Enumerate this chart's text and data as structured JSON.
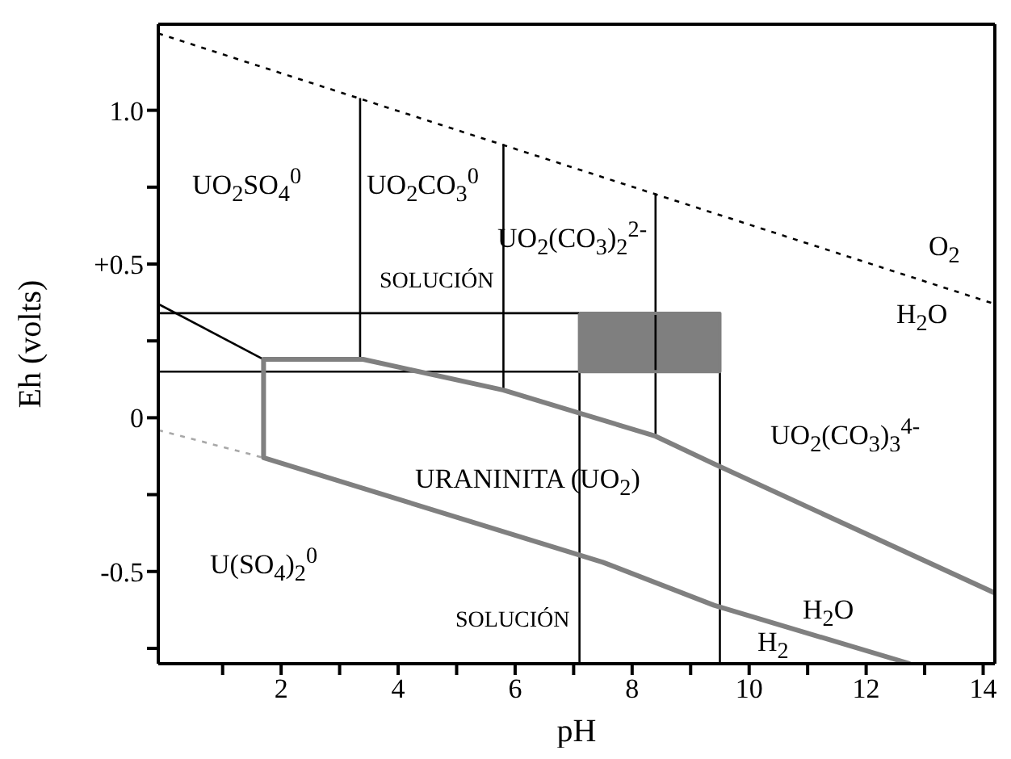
{
  "chart_data": {
    "type": "line",
    "xlabel": "pH",
    "ylabel": "Eh (volts)",
    "xlim": [
      -0.1,
      14.2
    ],
    "ylim": [
      -0.8,
      1.28
    ],
    "xticks": [
      {
        "value": 1,
        "label": null
      },
      2,
      {
        "value": 3,
        "label": null
      },
      4,
      {
        "value": 5,
        "label": null
      },
      6,
      {
        "value": 7,
        "label": null
      },
      8,
      {
        "value": 9,
        "label": null
      },
      10,
      {
        "value": 11,
        "label": null
      },
      12,
      {
        "value": 13,
        "label": null
      },
      14
    ],
    "yticks": [
      {
        "value": -0.75,
        "label": null
      },
      {
        "value": -0.5,
        "label": "-0.5"
      },
      {
        "value": -0.25,
        "label": null
      },
      0,
      {
        "value": 0.25,
        "label": null
      },
      {
        "value": 0.5,
        "label": "+0.5"
      },
      {
        "value": 0.75,
        "label": null
      },
      {
        "value": 1,
        "label": "1.0"
      }
    ],
    "grid": false,
    "marker": "none",
    "series": [
      {
        "color": "#000000",
        "line_style": "dotted",
        "x": [
          -0.1,
          14.2
        ],
        "values": [
          1.25,
          0.37
        ]
      },
      {
        "color": "#a8a8a8",
        "line_style": "dotted",
        "x": [
          -0.1,
          1.7
        ],
        "values": [
          -0.04,
          -0.13
        ]
      },
      {
        "color": "#000000",
        "x": [
          -0.1,
          1.7
        ],
        "values": [
          0.37,
          0.19
        ]
      },
      {
        "color": "#000000",
        "x": [
          -0.1,
          7.1
        ],
        "values": [
          0.34,
          0.34
        ]
      },
      {
        "color": "#000000",
        "x": [
          -0.1,
          7.1
        ],
        "values": [
          0.15,
          0.15
        ]
      },
      {
        "color": "#000000",
        "x": [
          3.35,
          3.35
        ],
        "values": [
          1.04,
          0.19
        ]
      },
      {
        "color": "#000000",
        "x": [
          5.8,
          5.8
        ],
        "values": [
          0.89,
          0.09
        ]
      },
      {
        "color": "#000000",
        "x": [
          8.4,
          8.4
        ],
        "values": [
          0.73,
          -0.06
        ]
      },
      {
        "color": "#000000",
        "x": [
          7.1,
          7.1
        ],
        "values": [
          0.15,
          -0.8
        ]
      },
      {
        "color": "#000000",
        "x": [
          9.5,
          9.5
        ],
        "values": [
          0.15,
          -0.8
        ]
      },
      {
        "color": "#808080",
        "x": [
          14.2,
          9.4,
          8.4,
          5.8,
          3.4,
          1.7,
          1.7,
          7.5,
          9.4,
          12.75
        ],
        "values": [
          -0.57,
          -0.15,
          -0.06,
          0.09,
          0.19,
          0.19,
          -0.13,
          -0.47,
          -0.61,
          -0.8
        ]
      },
      {
        "type": "area",
        "color": "#7f7f7f",
        "x": [
          7.1,
          9.5,
          9.5,
          7.1,
          7.1
        ],
        "values": [
          0.34,
          0.34,
          0.15,
          0.15,
          0.34
        ]
      }
    ],
    "annotations": [
      "UO$_{2}$SO$_{4}$$^{0}$",
      "UO$_{2}$CO$_{3}$$^{0}$",
      "UO$_{2}$(CO$_{3}$)$_{2}$$^{2-}$",
      "SOLUCIÓN",
      "O$_{2}$",
      "H$_{2}$O",
      "UO$_{2}$(CO$_{3}$)$_{3}$$^{4-}$",
      "URANINITA (UO$_{2}$)",
      "U(SO$_{4}$)$_{2}$$^{0}$",
      "SOLUCIÓN",
      "H$_{2}$O",
      "H$_{2}$"
    ]
  }
}
